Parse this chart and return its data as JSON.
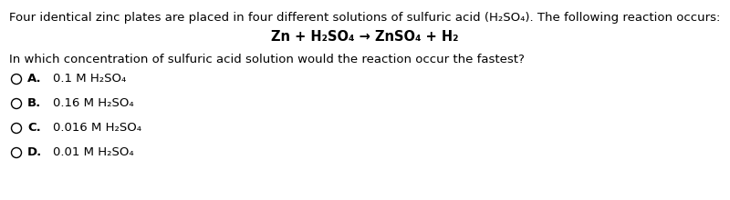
{
  "line1": "Four identical zinc plates are placed in four different solutions of sulfuric acid (H₂SO₄). The following reaction occurs:",
  "line2": "Zn + H₂SO₄ → ZnSO₄ + H₂",
  "line3": "In which concentration of sulfuric acid solution would the reaction occur the fastest?",
  "option_labels": [
    "A.",
    "B.",
    "C.",
    "D."
  ],
  "option_texts": [
    "0.1 M H₂SO₄",
    "0.16 M H₂SO₄",
    "0.016 M H₂SO₄",
    "0.01 M H₂SO₄"
  ],
  "bg_color": "#ffffff",
  "text_color": "#000000",
  "font_size_body": 9.5,
  "font_size_equation": 10.5
}
